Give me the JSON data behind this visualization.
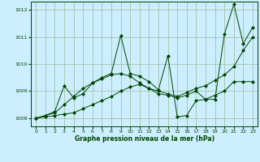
{
  "background_color": "#cceeff",
  "plot_bg_color": "#cceeff",
  "grid_color": "#99bb99",
  "line_color": "#004400",
  "marker_color": "#004400",
  "xlabel": "Graphe pression niveau de la mer (hPa)",
  "ylim": [
    1007.7,
    1012.3
  ],
  "xlim": [
    -0.5,
    23.5
  ],
  "yticks": [
    1008,
    1009,
    1010,
    1011,
    1012
  ],
  "xticks": [
    0,
    1,
    2,
    3,
    4,
    5,
    6,
    7,
    8,
    9,
    10,
    11,
    12,
    13,
    14,
    15,
    16,
    17,
    18,
    19,
    20,
    21,
    22,
    23
  ],
  "series": [
    [
      1008.0,
      1008.05,
      1008.1,
      1008.15,
      1008.2,
      1008.35,
      1008.5,
      1008.65,
      1008.8,
      1009.0,
      1009.15,
      1009.25,
      1009.1,
      1009.0,
      1008.9,
      1008.8,
      1008.95,
      1009.1,
      1009.2,
      1009.4,
      1009.6,
      1009.9,
      1010.5,
      1011.0
    ],
    [
      1008.0,
      1008.1,
      1008.2,
      1008.5,
      1008.8,
      1009.1,
      1009.3,
      1009.45,
      1009.6,
      1009.65,
      1009.55,
      1009.3,
      1009.1,
      1008.9,
      1008.85,
      1008.75,
      1008.85,
      1009.0,
      1008.7,
      1008.85,
      1009.0,
      1009.35,
      1009.35,
      1009.35
    ],
    [
      1008.0,
      1008.1,
      1008.25,
      1009.2,
      1008.75,
      1008.9,
      1009.3,
      1009.5,
      1009.65,
      1011.05,
      1009.65,
      1009.55,
      1009.35,
      1009.05,
      1010.3,
      1008.05,
      1008.1,
      1008.65,
      1008.7,
      1008.7,
      1011.1,
      1012.2,
      1010.75,
      1011.35
    ]
  ]
}
